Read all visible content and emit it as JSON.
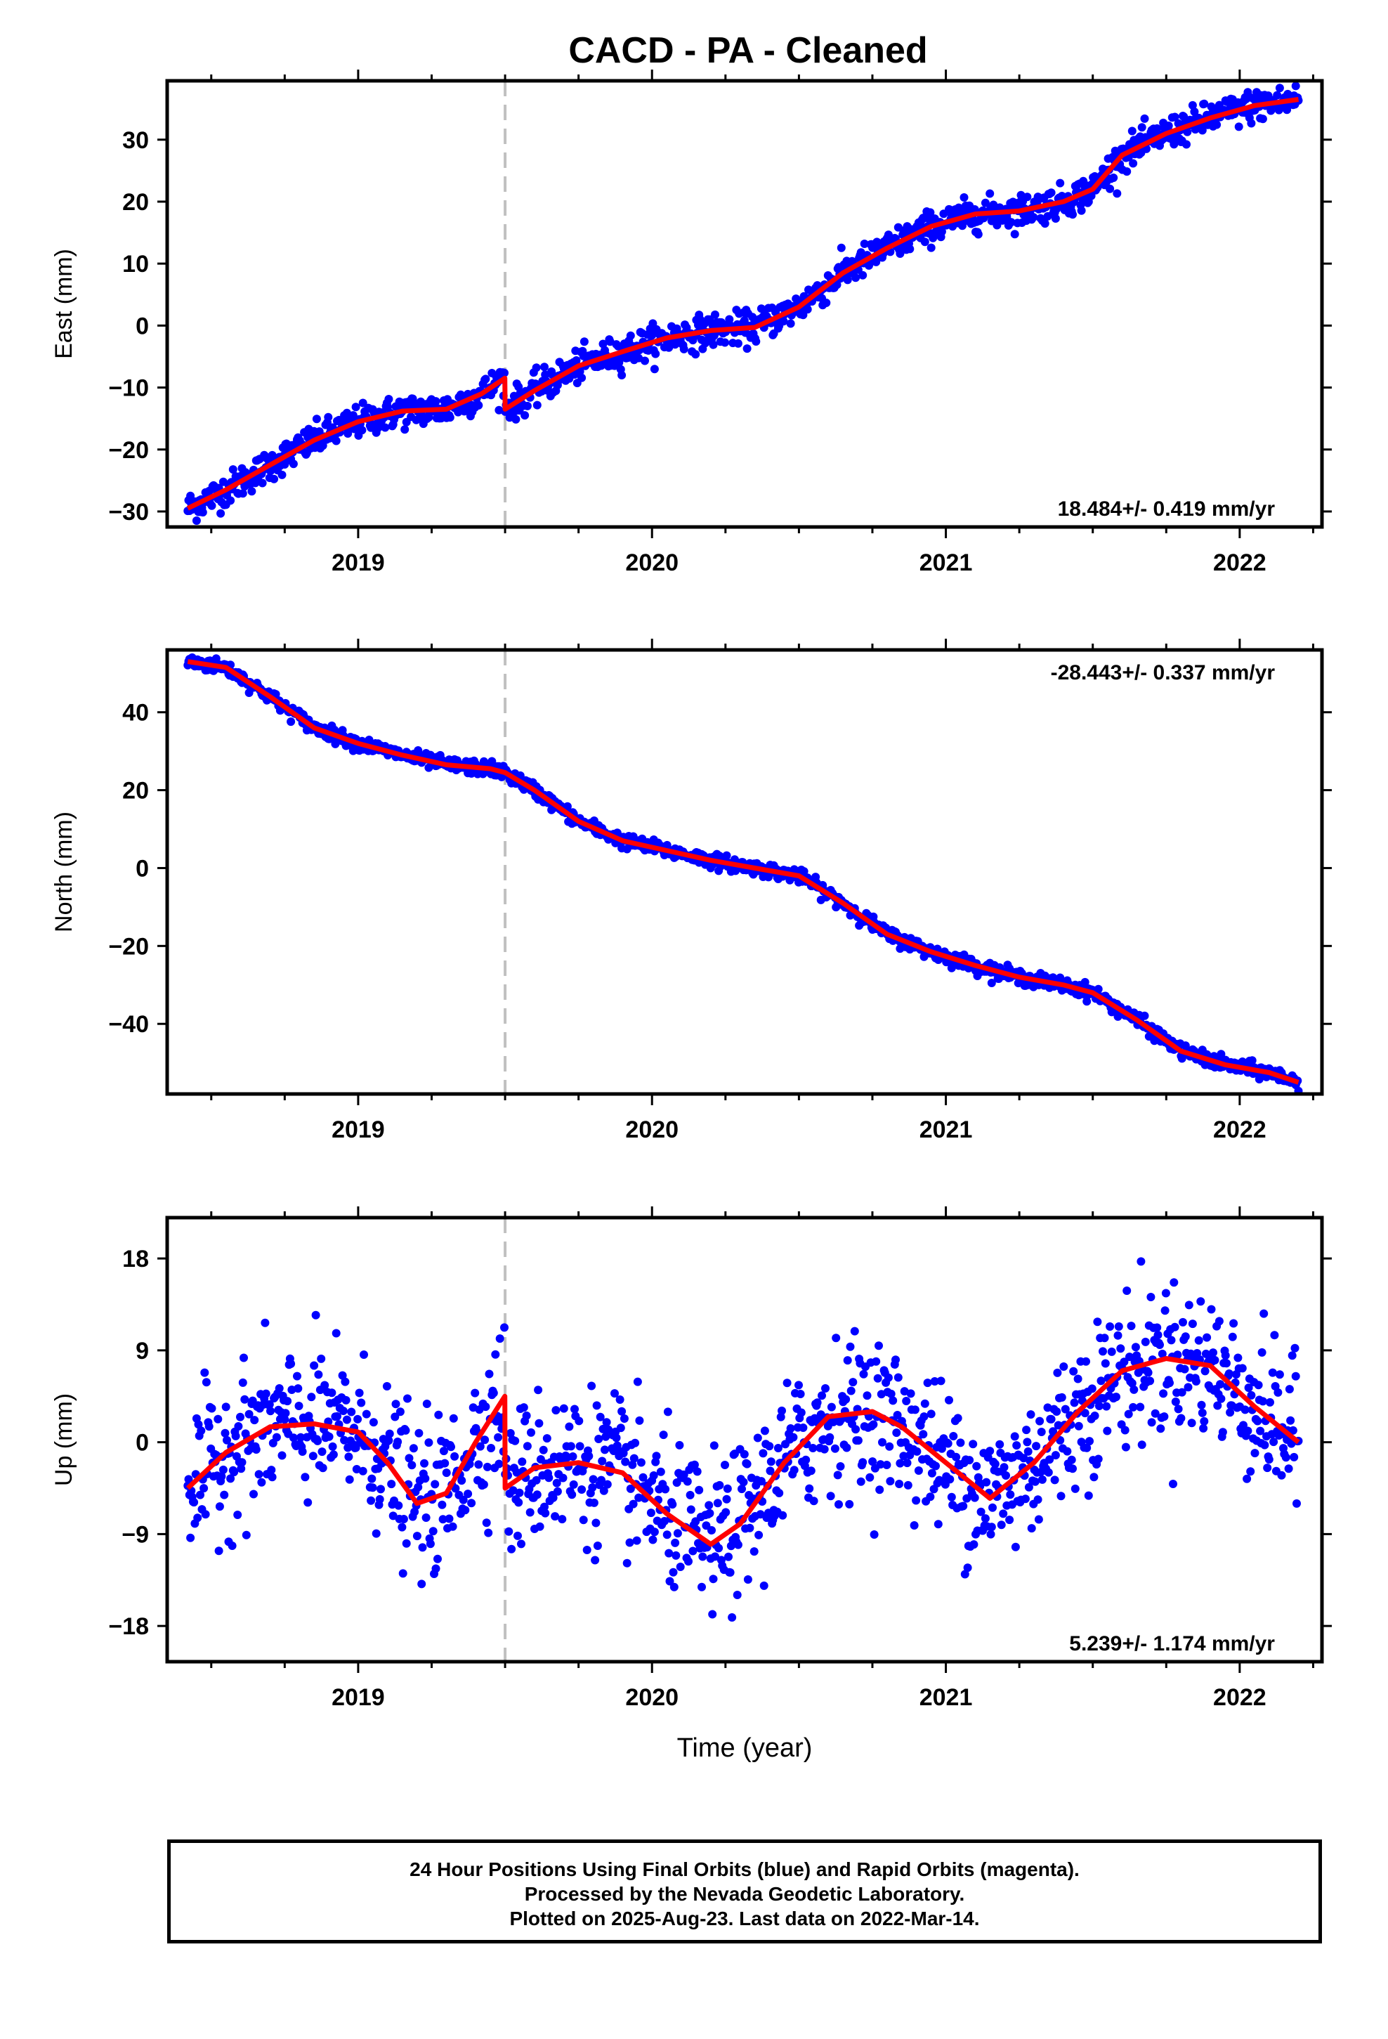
{
  "title": "CACD  - PA - Cleaned",
  "colors": {
    "data_points": "#0000ff",
    "model_fit": "#ff0000",
    "event_line": "#c0c0c0",
    "axes": "#000000"
  },
  "footer": {
    "line1": "24 Hour Positions Using Final Orbits (blue) and Rapid Orbits (magenta).",
    "line2": "Processed by the Nevada Geodetic Laboratory.",
    "line3": "Plotted on 2025-Aug-23. Last data on 2022-Mar-14."
  },
  "chart_data": [
    {
      "type": "scatter",
      "ylabel": "East (mm)",
      "xlim": [
        2018.35,
        2022.28
      ],
      "ylim": [
        -32.5,
        39.5
      ],
      "yticks": [
        -30,
        -20,
        -10,
        0,
        10,
        20,
        30
      ],
      "xticks": [
        2019,
        2020,
        2021,
        2022
      ],
      "event_line_x": 2019.5,
      "rate_label": "18.484+/- 0.419 mm/yr",
      "rate_position": "bottom-right",
      "scatter_sigma": 1.3,
      "series": [
        {
          "values": [
            [
              2018.42,
              -29.5
            ],
            [
              2018.55,
              -26.5
            ],
            [
              2018.7,
              -22.5
            ],
            [
              2018.85,
              -18.5
            ],
            [
              2019.0,
              -15.5
            ],
            [
              2019.15,
              -13.8
            ],
            [
              2019.3,
              -13.5
            ],
            [
              2019.42,
              -11.0
            ],
            [
              2019.499,
              -8.5
            ],
            [
              2019.5,
              -13.5
            ],
            [
              2019.6,
              -10.5
            ],
            [
              2019.75,
              -6.5
            ],
            [
              2019.9,
              -4.2
            ],
            [
              2020.05,
              -2.0
            ],
            [
              2020.2,
              -0.8
            ],
            [
              2020.35,
              -0.3
            ],
            [
              2020.5,
              3.0
            ],
            [
              2020.65,
              8.5
            ],
            [
              2020.8,
              12.5
            ],
            [
              2020.95,
              16.0
            ],
            [
              2021.1,
              18.0
            ],
            [
              2021.25,
              18.5
            ],
            [
              2021.4,
              20.0
            ],
            [
              2021.5,
              22.0
            ],
            [
              2021.6,
              27.5
            ],
            [
              2021.75,
              31.0
            ],
            [
              2021.9,
              33.5
            ],
            [
              2022.05,
              35.5
            ],
            [
              2022.2,
              36.5
            ]
          ]
        }
      ]
    },
    {
      "type": "scatter",
      "ylabel": "North (mm)",
      "xlim": [
        2018.35,
        2022.28
      ],
      "ylim": [
        -58,
        56
      ],
      "yticks": [
        -40,
        -20,
        0,
        20,
        40
      ],
      "xticks": [
        2019,
        2020,
        2021,
        2022
      ],
      "event_line_x": 2019.5,
      "rate_label": "-28.443+/- 0.337 mm/yr",
      "rate_position": "top-right",
      "scatter_sigma": 0.9,
      "series": [
        {
          "values": [
            [
              2018.42,
              53.0
            ],
            [
              2018.55,
              51.5
            ],
            [
              2018.7,
              44.0
            ],
            [
              2018.85,
              36.0
            ],
            [
              2019.0,
              32.0
            ],
            [
              2019.15,
              29.0
            ],
            [
              2019.3,
              26.5
            ],
            [
              2019.45,
              25.5
            ],
            [
              2019.5,
              24.5
            ],
            [
              2019.6,
              20.0
            ],
            [
              2019.75,
              12.0
            ],
            [
              2019.9,
              7.0
            ],
            [
              2020.05,
              4.5
            ],
            [
              2020.2,
              2.0
            ],
            [
              2020.35,
              0.0
            ],
            [
              2020.5,
              -2.0
            ],
            [
              2020.65,
              -9.0
            ],
            [
              2020.8,
              -17.0
            ],
            [
              2020.95,
              -21.5
            ],
            [
              2021.1,
              -25.0
            ],
            [
              2021.25,
              -28.0
            ],
            [
              2021.4,
              -30.0
            ],
            [
              2021.5,
              -32.0
            ],
            [
              2021.65,
              -39.0
            ],
            [
              2021.8,
              -47.0
            ],
            [
              2021.95,
              -50.5
            ],
            [
              2022.1,
              -52.5
            ],
            [
              2022.2,
              -55.0
            ]
          ]
        }
      ]
    },
    {
      "type": "scatter",
      "ylabel": "Up (mm)",
      "xlabel": "Time (year)",
      "xlim": [
        2018.35,
        2022.28
      ],
      "ylim": [
        -21.5,
        22
      ],
      "yticks": [
        -18,
        -9,
        0,
        9,
        18
      ],
      "xticks": [
        2019,
        2020,
        2021,
        2022
      ],
      "event_line_x": 2019.5,
      "rate_label": "5.239+/- 1.174 mm/yr",
      "rate_position": "bottom-right",
      "scatter_sigma": 3.6,
      "series": [
        {
          "values": [
            [
              2018.42,
              -4.5
            ],
            [
              2018.55,
              -1.0
            ],
            [
              2018.7,
              1.5
            ],
            [
              2018.85,
              1.8
            ],
            [
              2019.0,
              1.0
            ],
            [
              2019.1,
              -2.0
            ],
            [
              2019.2,
              -6.0
            ],
            [
              2019.3,
              -5.0
            ],
            [
              2019.4,
              0.0
            ],
            [
              2019.499,
              4.5
            ],
            [
              2019.5,
              -4.5
            ],
            [
              2019.6,
              -2.5
            ],
            [
              2019.75,
              -2.0
            ],
            [
              2019.9,
              -3.0
            ],
            [
              2020.05,
              -7.0
            ],
            [
              2020.2,
              -10.0
            ],
            [
              2020.3,
              -8.0
            ],
            [
              2020.45,
              -2.0
            ],
            [
              2020.6,
              2.5
            ],
            [
              2020.75,
              3.0
            ],
            [
              2020.85,
              1.5
            ],
            [
              2021.0,
              -2.0
            ],
            [
              2021.15,
              -5.5
            ],
            [
              2021.3,
              -2.0
            ],
            [
              2021.45,
              3.0
            ],
            [
              2021.6,
              7.0
            ],
            [
              2021.75,
              8.2
            ],
            [
              2021.9,
              7.5
            ],
            [
              2022.05,
              3.5
            ],
            [
              2022.2,
              0.0
            ]
          ]
        }
      ]
    }
  ]
}
